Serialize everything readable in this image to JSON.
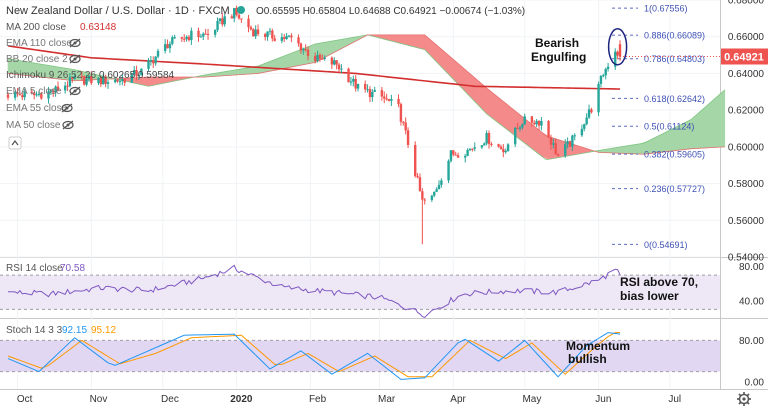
{
  "header": {
    "symbol": "New Zealand Dollar / U.S. Dollar · 1D · FXCM",
    "ohlc": "O0.65595 H0.65804 L0.64688 C0.64921 −0.00674 (−1.03%)"
  },
  "indicators": [
    {
      "label": "MA 200 close",
      "value": "0.63148",
      "color": "#d32f2f"
    },
    {
      "label": "EMA 110 close",
      "value": ""
    },
    {
      "label": "BB 20 close 2",
      "value": ""
    },
    {
      "label": "Ichimoku 9 26 52 26",
      "value": "0.60265  0.59584"
    },
    {
      "label": "EMA 5 close",
      "value": ""
    },
    {
      "label": "EMA 55 close",
      "value": ""
    },
    {
      "label": "MA 50 close",
      "value": ""
    }
  ],
  "price": {
    "last": "0.64921",
    "last_color": "#ef5350",
    "axis_ticks": [
      "0.68000",
      "0.66000",
      "0.64000",
      "0.62000",
      "0.60000",
      "0.58000",
      "0.56000",
      "0.54000"
    ]
  },
  "annotations": {
    "pattern_line1": "Bearish",
    "pattern_line2": "Engulfing",
    "rsi_note_line1": "RSI above 70,",
    "rsi_note_line2": "bias lower",
    "stoch_note_line1": "Momentum",
    "stoch_note_line2": "bullish"
  },
  "rsi": {
    "label": "RSI 14 close",
    "value": "70.58",
    "axis_ticks": [
      "80.00",
      "40.00"
    ]
  },
  "stoch": {
    "label": "Stoch 14 3 3",
    "k_value": "92.15",
    "d_value": "95.12",
    "axis_ticks": [
      "80.00",
      "0.00"
    ]
  },
  "x_axis": {
    "labels": [
      "Oct",
      "Nov",
      "Dec",
      "2020",
      "Feb",
      "Mar",
      "Apr",
      "May",
      "Jun",
      "Jul"
    ]
  },
  "chart_data": {
    "type": "candlestick",
    "x_start": "2019-09-27",
    "x_end": "2020-06-10",
    "ylim": [
      0.54,
      0.68
    ],
    "fibonacci": [
      {
        "label": "1(0.67556)",
        "value": 0.67556
      },
      {
        "label": "0.886(0.66089)",
        "value": 0.66089
      },
      {
        "label": "0.786(0.64803)",
        "value": 0.64803
      },
      {
        "label": "0.618(0.62642)",
        "value": 0.62642
      },
      {
        "label": "0.5(0.61124)",
        "value": 0.61124
      },
      {
        "label": "0.382(0.59605)",
        "value": 0.59605
      },
      {
        "label": "0.236(0.57727)",
        "value": 0.57727
      },
      {
        "label": "0(0.54691)",
        "value": 0.54691
      }
    ],
    "price_path": [
      [
        "2019-09-27",
        0.6285
      ],
      [
        "2019-10-08",
        0.6282
      ],
      [
        "2019-10-16",
        0.6302
      ],
      [
        "2019-10-25",
        0.6366
      ],
      [
        "2019-11-06",
        0.636
      ],
      [
        "2019-11-14",
        0.6365
      ],
      [
        "2019-11-22",
        0.641
      ],
      [
        "2019-12-03",
        0.656
      ],
      [
        "2019-12-13",
        0.661
      ],
      [
        "2019-12-20",
        0.661
      ],
      [
        "2019-12-27",
        0.67
      ],
      [
        "2019-12-31",
        0.673
      ],
      [
        "2020-01-08",
        0.663
      ],
      [
        "2020-01-17",
        0.66
      ],
      [
        "2020-01-24",
        0.659
      ],
      [
        "2020-02-03",
        0.648
      ],
      [
        "2020-02-12",
        0.645
      ],
      [
        "2020-02-21",
        0.632
      ],
      [
        "2020-03-02",
        0.627
      ],
      [
        "2020-03-09",
        0.621
      ],
      [
        "2020-03-13",
        0.602
      ],
      [
        "2020-03-19",
        0.57
      ],
      [
        "2020-03-23",
        0.572
      ],
      [
        "2020-03-31",
        0.596
      ],
      [
        "2020-04-07",
        0.598
      ],
      [
        "2020-04-15",
        0.605
      ],
      [
        "2020-04-22",
        0.598
      ],
      [
        "2020-04-30",
        0.614
      ],
      [
        "2020-05-08",
        0.614
      ],
      [
        "2020-05-15",
        0.595
      ],
      [
        "2020-05-22",
        0.605
      ],
      [
        "2020-05-29",
        0.621
      ],
      [
        "2020-06-03",
        0.64
      ],
      [
        "2020-06-08",
        0.653
      ],
      [
        "2020-06-10",
        0.6492
      ]
    ],
    "ma200": [
      [
        "2019-09-27",
        0.655
      ],
      [
        "2019-11-01",
        0.6485
      ],
      [
        "2019-12-20",
        0.645
      ],
      [
        "2020-02-20",
        0.64
      ],
      [
        "2020-04-10",
        0.633
      ],
      [
        "2020-06-10",
        0.6315
      ]
    ],
    "cloud_span_a": [
      [
        "2019-09-27",
        0.648
      ],
      [
        "2019-10-25",
        0.642
      ],
      [
        "2019-11-25",
        0.633
      ],
      [
        "2019-12-18",
        0.639
      ],
      [
        "2020-01-10",
        0.644
      ],
      [
        "2020-02-03",
        0.656
      ],
      [
        "2020-02-25",
        0.661
      ],
      [
        "2020-03-20",
        0.653
      ],
      [
        "2020-04-15",
        0.618
      ],
      [
        "2020-05-10",
        0.593
      ],
      [
        "2020-06-01",
        0.598
      ],
      [
        "2020-06-20",
        0.602
      ],
      [
        "2020-07-10",
        0.615
      ],
      [
        "2020-07-24",
        0.631
      ]
    ],
    "cloud_span_b": [
      [
        "2019-09-27",
        0.64
      ],
      [
        "2019-10-25",
        0.636
      ],
      [
        "2019-11-25",
        0.638
      ],
      [
        "2019-12-18",
        0.638
      ],
      [
        "2020-01-10",
        0.64
      ],
      [
        "2020-02-03",
        0.646
      ],
      [
        "2020-02-25",
        0.661
      ],
      [
        "2020-03-20",
        0.661
      ],
      [
        "2020-04-15",
        0.632
      ],
      [
        "2020-05-10",
        0.606
      ],
      [
        "2020-06-01",
        0.597
      ],
      [
        "2020-06-20",
        0.596
      ],
      [
        "2020-07-10",
        0.599
      ],
      [
        "2020-07-24",
        0.6
      ]
    ],
    "rsi_ylim": [
      20,
      90
    ],
    "rsi_path": [
      [
        "2019-09-27",
        50
      ],
      [
        "2019-10-15",
        48
      ],
      [
        "2019-11-05",
        55
      ],
      [
        "2019-11-25",
        52
      ],
      [
        "2019-12-15",
        64
      ],
      [
        "2019-12-31",
        78
      ],
      [
        "2020-01-20",
        56
      ],
      [
        "2020-02-10",
        50
      ],
      [
        "2020-03-01",
        44
      ],
      [
        "2020-03-20",
        24
      ],
      [
        "2020-04-05",
        48
      ],
      [
        "2020-04-25",
        52
      ],
      [
        "2020-05-15",
        50
      ],
      [
        "2020-06-01",
        64
      ],
      [
        "2020-06-08",
        76
      ],
      [
        "2020-06-10",
        70.58
      ]
    ],
    "stoch_ylim": [
      0,
      100
    ],
    "stoch_k": [
      [
        "2019-09-27",
        45
      ],
      [
        "2019-10-10",
        20
      ],
      [
        "2019-10-25",
        85
      ],
      [
        "2019-11-10",
        30
      ],
      [
        "2019-11-25",
        60
      ],
      [
        "2019-12-10",
        90
      ],
      [
        "2019-12-31",
        92
      ],
      [
        "2020-01-15",
        25
      ],
      [
        "2020-01-28",
        60
      ],
      [
        "2020-02-10",
        15
      ],
      [
        "2020-02-25",
        55
      ],
      [
        "2020-03-10",
        5
      ],
      [
        "2020-03-20",
        8
      ],
      [
        "2020-04-05",
        85
      ],
      [
        "2020-04-20",
        40
      ],
      [
        "2020-05-01",
        80
      ],
      [
        "2020-05-15",
        10
      ],
      [
        "2020-05-27",
        70
      ],
      [
        "2020-06-05",
        95
      ],
      [
        "2020-06-10",
        92.15
      ]
    ],
    "stoch_d": [
      [
        "2019-09-27",
        50
      ],
      [
        "2019-10-12",
        25
      ],
      [
        "2019-10-28",
        80
      ],
      [
        "2019-11-13",
        35
      ],
      [
        "2019-11-28",
        55
      ],
      [
        "2019-12-13",
        85
      ],
      [
        "2020-01-03",
        90
      ],
      [
        "2020-01-18",
        30
      ],
      [
        "2020-01-31",
        55
      ],
      [
        "2020-02-13",
        20
      ],
      [
        "2020-02-28",
        50
      ],
      [
        "2020-03-13",
        10
      ],
      [
        "2020-03-23",
        10
      ],
      [
        "2020-04-08",
        80
      ],
      [
        "2020-04-23",
        45
      ],
      [
        "2020-05-04",
        75
      ],
      [
        "2020-05-18",
        15
      ],
      [
        "2020-05-30",
        65
      ],
      [
        "2020-06-07",
        95
      ],
      [
        "2020-06-10",
        95.12
      ]
    ],
    "colors": {
      "up": "#26a69a",
      "down": "#ef5350",
      "ma200": "#d32f2f",
      "cloud_bull": "#a5d6a7",
      "cloud_bear": "#f48a8a",
      "rsi": "#7e57c2",
      "rsi_band": "#ede7f6",
      "stoch_k": "#2196f3",
      "stoch_d": "#ff9800",
      "stoch_band": "#e1d7f3",
      "fib_line": "#5c6bc0",
      "fib_text": "#3f51b5"
    }
  }
}
